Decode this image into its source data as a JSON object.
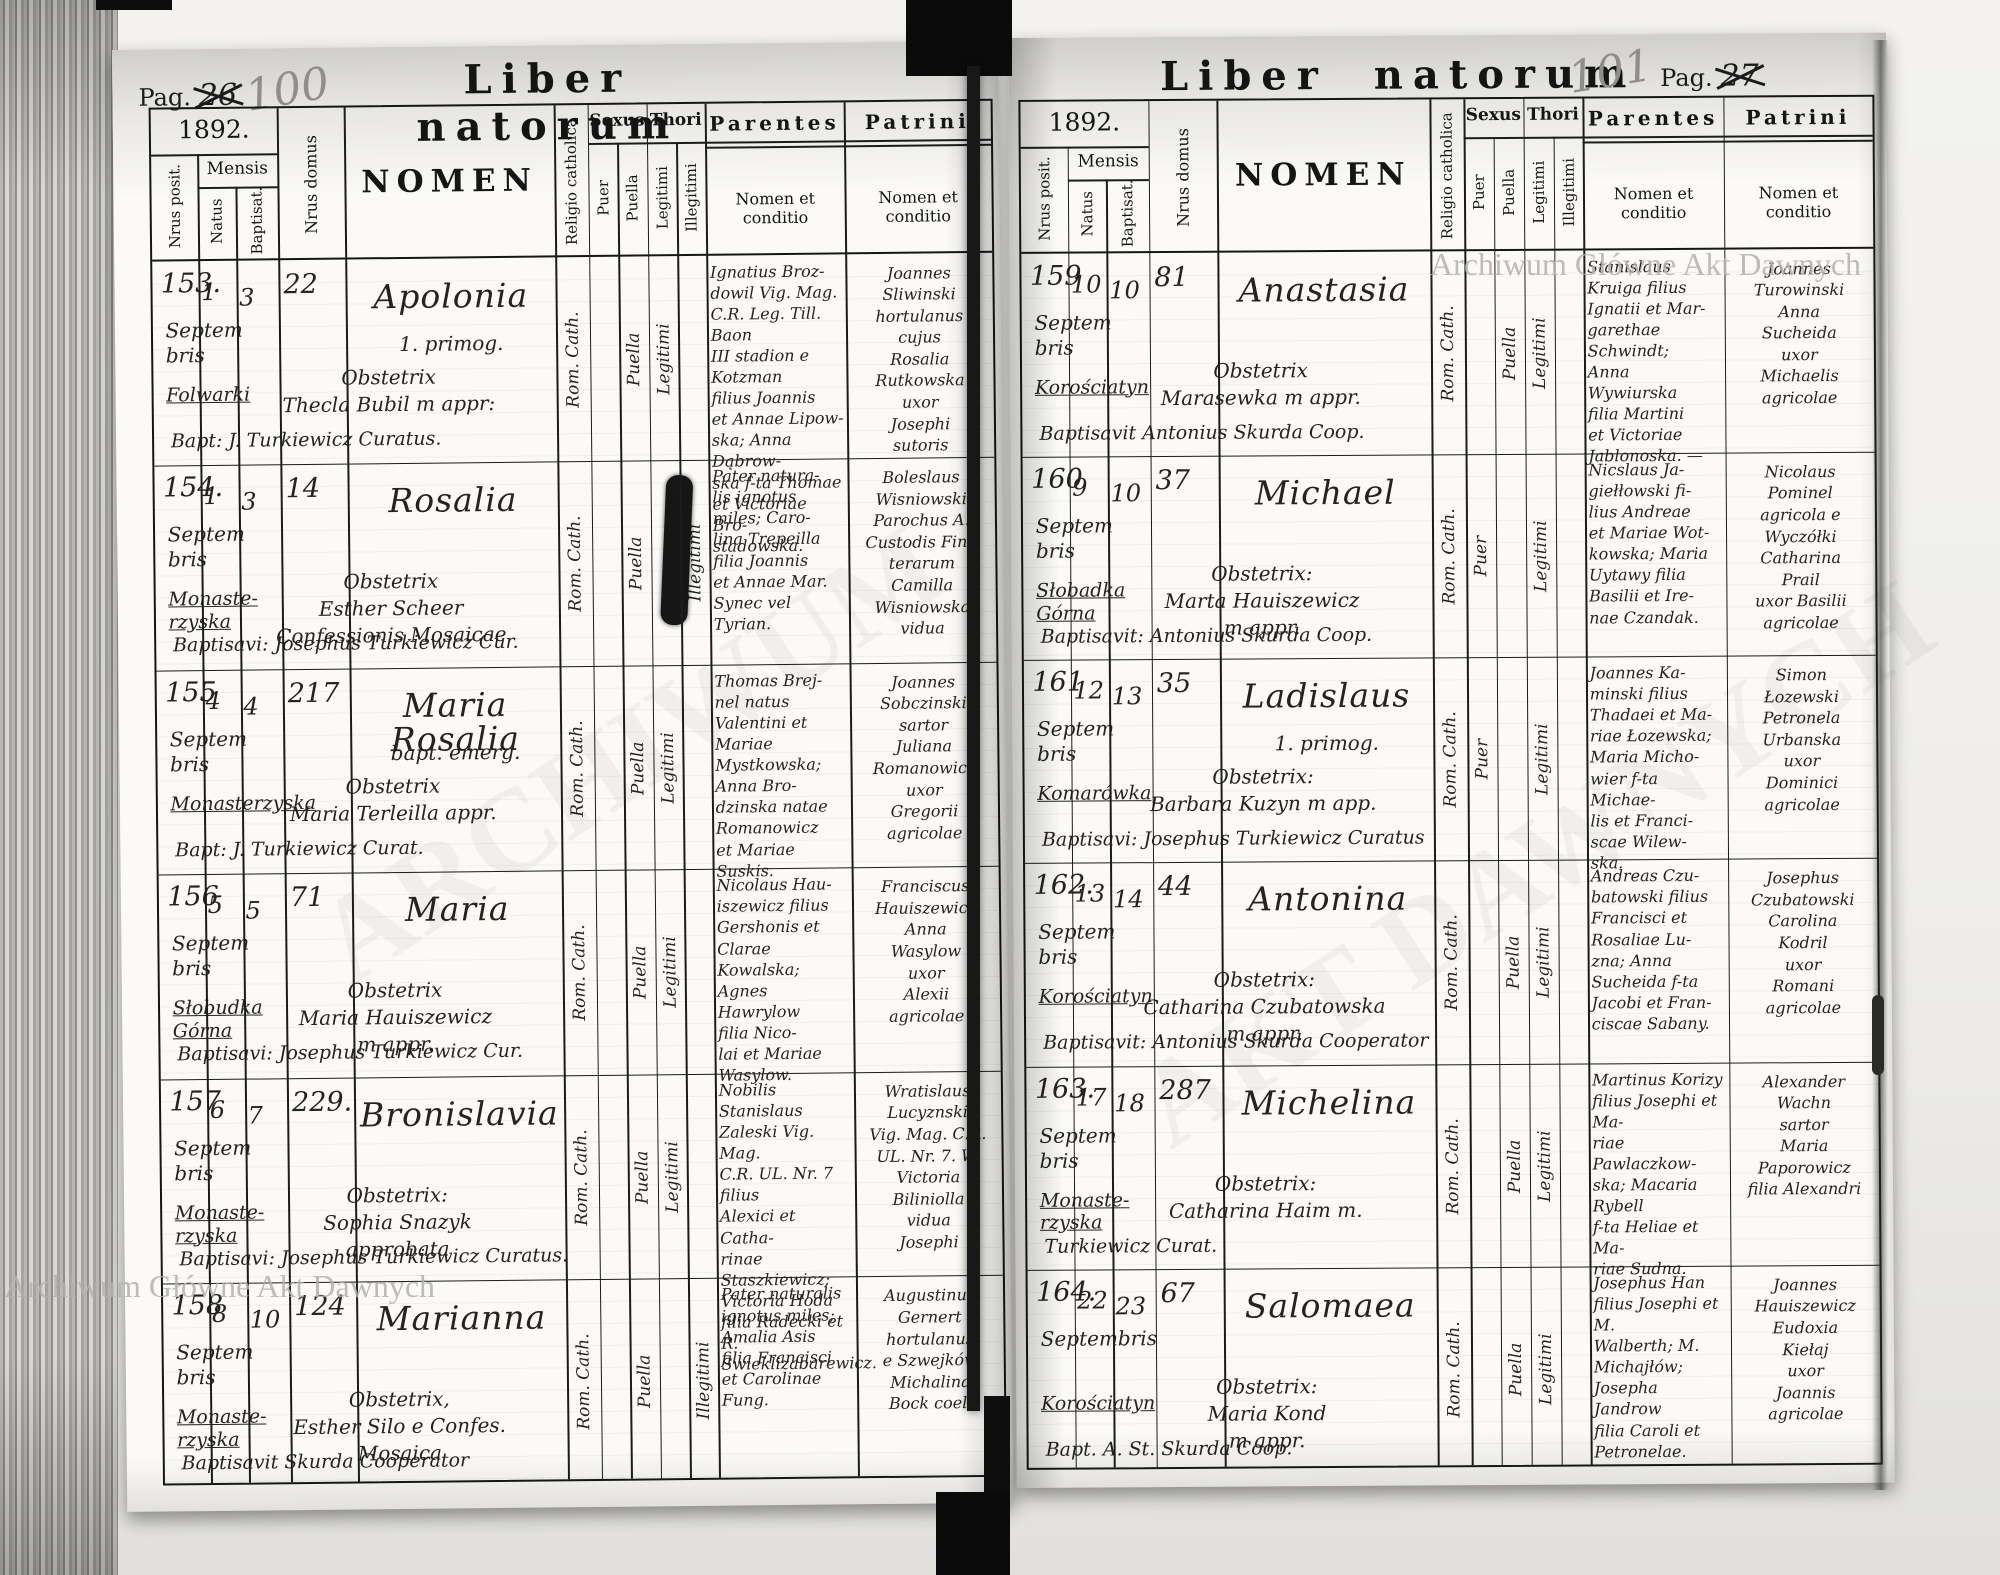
{
  "table_headers": {
    "year": "1892.",
    "mensis": "Mensis",
    "nrus_posit": "Nrus posit.",
    "natus": "Natus",
    "baptisat": "Baptisat.",
    "nrus_domus": "Nrus domus",
    "nomen": "NOMEN",
    "religio": "Religio catholica",
    "sexus": "Sexus",
    "puer": "Puer",
    "puella": "Puella",
    "thori": "Thori",
    "legitimi": "Legitimi",
    "illegitimi": "Illegitimi",
    "parentes": "Parentes",
    "patrini": "Patrini",
    "nomen_et_conditio": "Nomen et conditio"
  },
  "watermarks": {
    "archive_name_top_right": "Archiwum Główne Akt Dawnych",
    "archive_name_bottom_left": "Archiwum Główne Akt Dawnych",
    "diagonal_left": "ARCHIWUM",
    "diagonal_right": "AKT DAWNYCH"
  },
  "left_page": {
    "title": "Liber natorum",
    "pag_label": "Pag.",
    "crossed_number": "26",
    "pencil_number": "100",
    "rows": [
      {
        "nr": "153.",
        "natus": "1",
        "baptisat": "3",
        "month": "Septem\nbris",
        "place": "Folwarki",
        "house": "22",
        "name": "Apolonia",
        "name_sub": "1. primog.",
        "notes": "Obstetrix\nThecla Bubil m appr:",
        "bapt": "Bapt: J. Turkiewicz Curatus.",
        "religio": "Rom. Cath.",
        "sexus": "Puella",
        "thori": "Legitimi",
        "parentes": "Ignatius Broz-\ndowil Vig. Mag.\nC.R. Leg. Till. Baon\nIII stadion e Kotzman\nfilius Joannis\net Annae Lipow-\nska; Anna Dąbrow-\nska f-ta Thomae\net Victoriae Bro-\nstadowska.",
        "patrini": "Joannes\nSliwinski\nhortulanus\ncujus\nRosalia\nRutkowska\nuxor\nJosephi\nsutoris"
      },
      {
        "nr": "154.",
        "natus": "1",
        "baptisat": "3",
        "month": "Septem\nbris",
        "place": "Monaste-\nrzyska",
        "house": "14",
        "name": "Rosalia",
        "name_sub": "",
        "notes": "Obstetrix\nEsther Scheer\nConfessionis Mosaicae",
        "bapt": "Baptisavi: Josephus Turkiewicz Cur.",
        "religio": "Rom. Cath.",
        "sexus": "Puella",
        "thori": "Illegitimi",
        "thori_blot": true,
        "parentes": "Pater natura-\nlis ignotus\nmiles; Caro-\nlina Trepeilla\nfilia Joannis\net Annae Mar.\nSynec vel\nTyrian.",
        "patrini": "Boleslaus\nWisniowski\nParochus A.\nCustodis Fini-\nterarum\nCamilla\nWisniowska\nvidua"
      },
      {
        "nr": "155",
        "natus": "4",
        "baptisat": "4",
        "month": "Septem\nbris",
        "place": "Monasterzyska",
        "house": "217",
        "name": "Maria\nRosalia",
        "name_sub": "bapt. emerg.",
        "notes": "Obstetrix\nMaria Terleilla appr.",
        "bapt": "Bapt: J. Turkiewicz Curat.",
        "religio": "Rom. Cath.",
        "sexus": "Puella",
        "thori": "Legitimi",
        "parentes": "Thomas Brej-\nnel natus\nValentini et Mariae\nMystkowska;\nAnna Bro-\ndzinska natae\nRomanowicz\net Mariae\nSuskis.",
        "patrini": "Joannes\nSobczinski\nsartor\nJuliana\nRomanowicz\nuxor\nGregorii\nagricolae"
      },
      {
        "nr": "156",
        "natus": "5",
        "baptisat": "5",
        "month": "Septem\nbris",
        "place": "Słobudka\nGórna",
        "house": "71",
        "name": "Maria",
        "name_sub": "",
        "notes": "Obstetrix\nMaria Hauiszewicz\nm appr.",
        "bapt": "Baptisavi: Josephus Turkiewicz Cur.",
        "religio": "Rom. Cath.",
        "sexus": "Puella",
        "thori": "Legitimi",
        "parentes": "Nicolaus Hau-\niszewicz filius\nGershonis et Clarae\nKowalska; Agnes\nHawrylow\nfilia Nico-\nlai et Mariae\nWasylow.",
        "patrini": "Franciscus\nHauiszewicz\nAnna\nWasylow\nuxor\nAlexii\nagricolae"
      },
      {
        "nr": "157",
        "natus": "6",
        "baptisat": "7",
        "month": "Septem\nbris",
        "place": "Monaste-\nrzyska",
        "house": "229.",
        "name": "Bronislavia",
        "name_sub": "",
        "notes": "Obstetrix:\nSophia Snazyk\napprobata",
        "bapt": "Baptisavi: Josephus Turkiewicz Curatus.",
        "religio": "Rom. Cath.",
        "sexus": "Puella",
        "thori": "Legitimi",
        "parentes": "Nobilis Stanislaus\nZaleski Vig. Mag.\nC.R. UL. Nr. 7 filius\nAlexici et Catha-\nrinae Staszkiewicz;\nVictoria Hoda\nfilia Radecki et R.\nSwieklizabarewicz.",
        "patrini": "Wratislaus\nLucyznski\nVig. Mag. C.R.\nUL. Nr. 7. W.\nVictoria\nBiliniolla\nvidua\nJosephi"
      },
      {
        "nr": "158",
        "natus": "8",
        "baptisat": "10",
        "month": "Septem\nbris",
        "place": "Monaste-\nrzyska",
        "house": "124",
        "name": "Marianna",
        "name_sub": "",
        "notes": "Obstetrix,\nEsther Silo e Confes.\nMosaica",
        "bapt": "Baptisavit Skurda Cooperator",
        "religio": "Rom. Cath.",
        "sexus": "Puella",
        "thori": "Illegitimi",
        "parentes": "Pater naturalis\nignotus miles;\nAmalia Asis\nfilia Francisci\net Carolinae\nFung.",
        "patrini": "Augustinus\nGernert\nhortulanus\ne Szwejków\nMichalina\nBock coel."
      }
    ]
  },
  "right_page": {
    "title": "Liber natorum",
    "pag_label": "Pag.",
    "crossed_number": "27",
    "pencil_number": "101",
    "rows": [
      {
        "nr": "159",
        "natus": "10",
        "baptisat": "10",
        "month": "Septem\nbris",
        "place": "Korościatyn",
        "house": "81",
        "name": "Anastasia",
        "name_sub": "",
        "notes": "Obstetrix\nMarasewka m appr.",
        "bapt": "Baptisavit Antonius Skurda Coop.",
        "religio": "Rom. Cath.",
        "sexus": "Puella",
        "thori": "Legitimi",
        "parentes": "Stanislaus\nKruiga filius\nIgnatii et Mar-\ngarethae Schwindt;\nAnna Wywiurska\nfilia Martini\net Victoriae\nJablonoska. —",
        "patrini": "Joannes\nTurowinski\nAnna\nSucheida\nuxor\nMichaelis\nagricolae"
      },
      {
        "nr": "160",
        "natus": "9",
        "baptisat": "10",
        "month": "Septem\nbris",
        "place": "Słobadka\nGórna",
        "house": "37",
        "name": "Michael",
        "name_sub": "",
        "notes": "Obstetrix:\nMarta Hauiszewicz\nm appr.",
        "bapt": "Baptisavit: Antonius Skurda Coop.",
        "religio": "Rom. Cath.",
        "sexus": "Puer",
        "thori": "Legitimi",
        "parentes": "Nicslaus Ja-\ngiełłowski fi-\nlius Andreae\net Mariae Wot-\nkowska; Maria\nUytawy filia\nBasilii et Ire-\nnae Czandak.",
        "patrini": "Nicolaus\nPominel\nagricola e\nWyczółki\nCatharina\nPrail\nuxor Basilii\nagricolae"
      },
      {
        "nr": "161",
        "natus": "12",
        "baptisat": "13",
        "month": "Septem\nbris",
        "place": "Komarówka",
        "house": "35",
        "name": "Ladislaus",
        "name_sub": "1. primog.",
        "notes": "Obstetrix:\nBarbara Kuzyn m app.",
        "bapt": "Baptisavi: Josephus Turkiewicz Curatus",
        "religio": "Rom. Cath.",
        "sexus": "Puer",
        "thori": "Legitimi",
        "parentes": "Joannes Ka-\nminski filius\nThadaei et Ma-\nriae Łozewska;\nMaria Micho-\nwier f-ta Michae-\nlis et Franci-\nscae Wilew-\nska.",
        "patrini": "Simon\nŁozewski\nPetronela\nUrbanska\nuxor\nDominici\nagricolae"
      },
      {
        "nr": "162.",
        "natus": "13",
        "baptisat": "14",
        "month": "Septem\nbris",
        "place": "Korościatyn",
        "house": "44",
        "name": "Antonina",
        "name_sub": "",
        "notes": "Obstetrix:\nCatharina Czubatowska\nm appr.",
        "bapt": "Baptisavit: Antonius Skurda Cooperator",
        "religio": "Rom. Cath.",
        "sexus": "Puella",
        "thori": "Legitimi",
        "parentes": "Andreas Czu-\nbatowski filius\nFrancisci et\nRosaliae Lu-\nzna; Anna\nSucheida f-ta\nJacobi et Fran-\nciscae Sabany.",
        "patrini": "Josephus\nCzubatowski\nCarolina\nKodril\nuxor\nRomani\nagricolae"
      },
      {
        "nr": "163.",
        "natus": "17",
        "baptisat": "18",
        "month": "Septem\nbris",
        "place": "Monaste-\nrzyska",
        "house": "287",
        "name": "Michelina",
        "name_sub": "",
        "notes": "Obstetrix:\nCatharina Haim m.",
        "bapt": "Turkiewicz Curat.",
        "religio": "Rom. Cath.",
        "sexus": "Puella",
        "thori": "Legitimi",
        "parentes": "Martinus Korizy\nfilius Josephi et Ma-\nriae Pawlaczkow-\nska; Macaria Rybell\nf-ta Heliae et Ma-\nriae Sudna.",
        "patrini": "Alexander\nWachn\nsartor\nMaria\nPaporowicz\nfilia Alexandri"
      },
      {
        "nr": "164.",
        "natus": "22",
        "baptisat": "23",
        "month": "Septembris",
        "place": "Korościatyn",
        "house": "67",
        "name": "Salomaea",
        "name_sub": "",
        "notes": "Obstetrix:\nMaria Kond\nm appr.",
        "bapt": "Bapt. A. St. Skurda Coop.",
        "religio": "Rom. Cath.",
        "sexus": "Puella",
        "thori": "Legitimi",
        "parentes": "Josephus Han\nfilius Josephi et M.\nWalberth; M.\nMichajłów;\nJosepha Jandrow\nfilia Caroli et\nPetronelae.",
        "patrini": "Joannes\nHauiszewicz\nEudoxia\nKiełaj\nuxor\nJoannis\nagricolae"
      }
    ]
  }
}
